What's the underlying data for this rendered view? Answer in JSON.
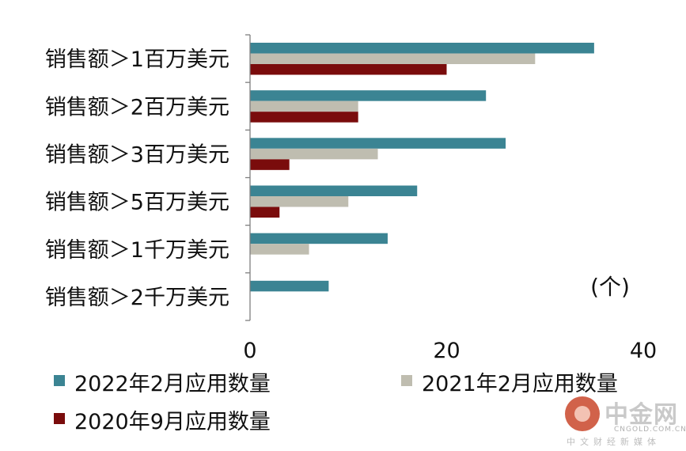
{
  "chart_data": {
    "type": "bar",
    "orientation": "horizontal",
    "categories": [
      "销售额＞1百万美元",
      "销售额＞2百万美元",
      "销售额＞3百万美元",
      "销售额＞5百万美元",
      "销售额＞1千万美元",
      "销售额＞2千万美元"
    ],
    "series": [
      {
        "name": "2022年2月应用数量",
        "color": "#3b8493",
        "values": [
          35,
          24,
          26,
          17,
          14,
          8
        ]
      },
      {
        "name": "2021年2月应用数量",
        "color": "#bfbdb0",
        "values": [
          29,
          11,
          13,
          10,
          6,
          0
        ]
      },
      {
        "name": "2020年9月应用数量",
        "color": "#7a0c0c",
        "values": [
          20,
          11,
          4,
          3,
          0,
          0
        ]
      }
    ],
    "xlim": [
      0,
      40
    ],
    "xticks": [
      "0",
      "20",
      "40"
    ],
    "unit_label": "(个)",
    "title": "",
    "xlabel": "",
    "ylabel": "",
    "grid": false,
    "legend_position": "bottom"
  },
  "watermark": {
    "brand": "中金网",
    "domain": "CNGOLD.COM.CN",
    "tagline": "中文财经新媒体"
  }
}
